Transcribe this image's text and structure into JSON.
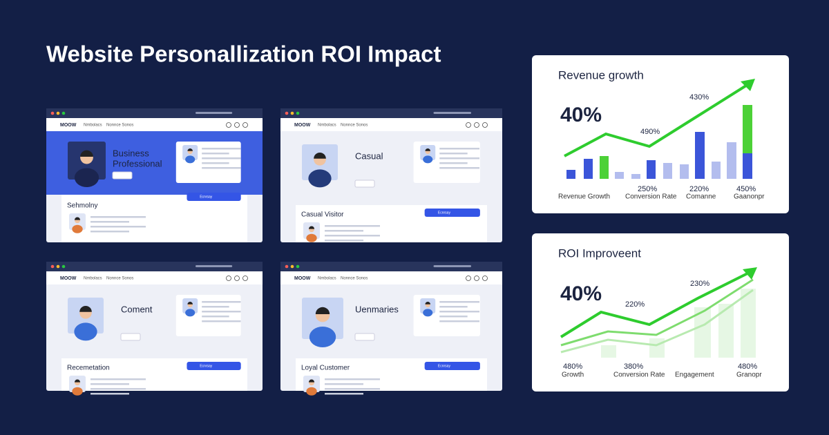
{
  "title": "Website Personallization ROI Impact",
  "mockups": [
    {
      "logo": "MOOW",
      "nav": [
        "Nmbolacs",
        "Nonnce Sonos"
      ],
      "heading": [
        "Business",
        "Professional"
      ],
      "section": "Sehmolny",
      "button": "Ecnrsay"
    },
    {
      "logo": "MOOW",
      "nav": [
        "Nmbolacs",
        "Nonnce Sonos"
      ],
      "heading": [
        "Casual"
      ],
      "section": "Casual Visitor",
      "button": "Ecnrsay"
    },
    {
      "logo": "MOOW",
      "nav": [
        "Nmbolacs",
        "Nonnce Sonos"
      ],
      "heading": [
        "Coment"
      ],
      "section": "Recemetation",
      "button": "Ecnrsay"
    },
    {
      "logo": "MOOW",
      "nav": [
        "Nmbolacs",
        "Nonnce Sonos"
      ],
      "heading": [
        "Uenmaries"
      ],
      "section": "Loyal Customer",
      "button": "Ecnrsay"
    }
  ],
  "cards": [
    {
      "title": "Revenue growth",
      "big": "40%",
      "annotations": [
        "430%",
        "490%"
      ],
      "values": [
        "250%",
        "220%",
        "450%"
      ],
      "labels": [
        "Revenue Growth",
        "Conversion Rate",
        "Comanne",
        "Gaanonpr"
      ]
    },
    {
      "title": "ROI Improveent",
      "big": "40%",
      "annotations": [
        "220%",
        "230%"
      ],
      "values": [
        "480%",
        "380%",
        "480%"
      ],
      "labels": [
        "Growth",
        "Conversion Rate",
        "Engagement",
        "Granopr"
      ]
    }
  ]
}
